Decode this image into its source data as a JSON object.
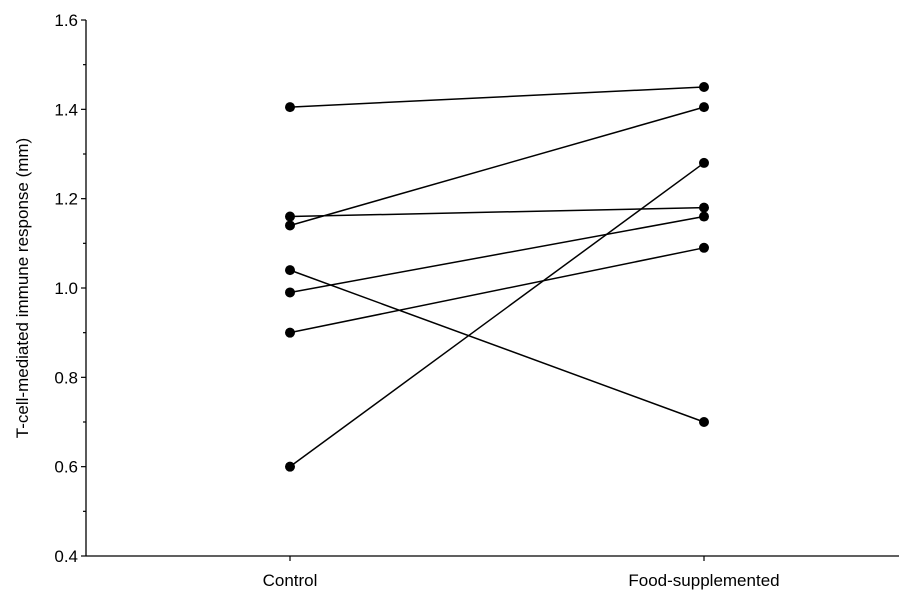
{
  "chart_data": {
    "type": "line",
    "title": "",
    "xlabel": "",
    "ylabel": "T-cell-mediated immune response (mm)",
    "categories": [
      "Control",
      "Food-supplemented"
    ],
    "ylim": [
      0.4,
      1.6
    ],
    "yticks": [
      "0.4",
      "0.6",
      "0.8",
      "1.0",
      "1.2",
      "1.4",
      "1.6"
    ],
    "grid": false,
    "legend": "none",
    "series": [
      {
        "values": [
          1.405,
          1.45
        ]
      },
      {
        "values": [
          1.14,
          1.405
        ]
      },
      {
        "values": [
          1.16,
          1.18
        ]
      },
      {
        "values": [
          0.99,
          1.16
        ]
      },
      {
        "values": [
          0.9,
          1.09
        ]
      },
      {
        "values": [
          1.04,
          0.7
        ]
      },
      {
        "values": [
          0.6,
          1.28
        ]
      }
    ]
  }
}
